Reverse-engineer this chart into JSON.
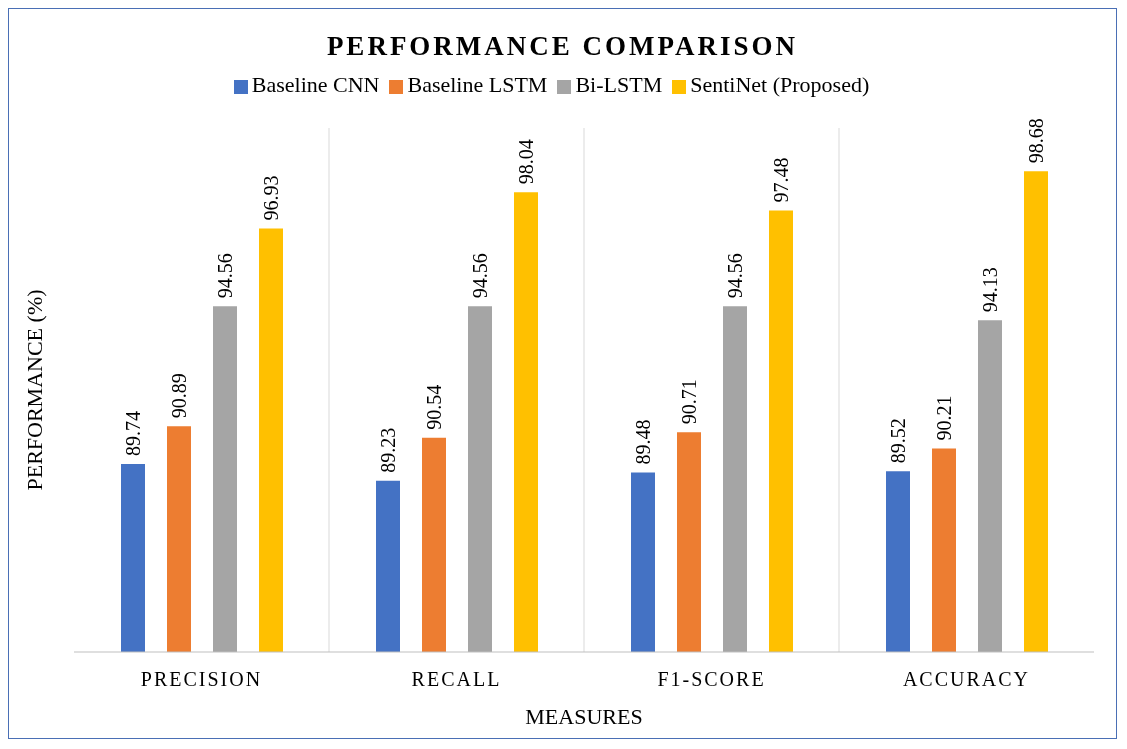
{
  "chart_data": {
    "type": "bar",
    "title": "PERFORMANCE COMPARISON",
    "xlabel": "MEASURES",
    "ylabel": "PERFORMANCE (%)",
    "categories": [
      "PRECISION",
      "RECALL",
      "F1-SCORE",
      "ACCURACY"
    ],
    "series": [
      {
        "name": "Baseline CNN",
        "color": "#4472c4",
        "values": [
          89.74,
          89.23,
          89.48,
          89.52
        ]
      },
      {
        "name": "Baseline LSTM",
        "color": "#ed7d31",
        "values": [
          90.89,
          90.54,
          90.71,
          90.21
        ]
      },
      {
        "name": "Bi-LSTM",
        "color": "#a5a5a5",
        "values": [
          94.56,
          94.56,
          94.56,
          94.13
        ]
      },
      {
        "name": "SentiNet (Proposed)",
        "color": "#ffc000",
        "values": [
          96.93,
          98.04,
          97.48,
          98.68
        ]
      }
    ],
    "ylim": [
      84,
      100
    ],
    "tick_labels": "x",
    "data_labels": true,
    "grid": "x",
    "legend": "top"
  }
}
